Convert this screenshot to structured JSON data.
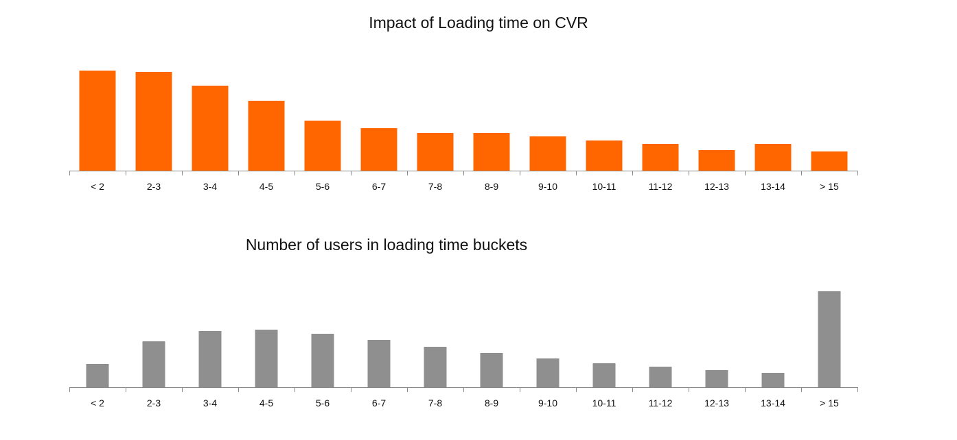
{
  "chart_data": [
    {
      "type": "bar",
      "title": "Impact of Loading time on CVR",
      "categories": [
        "< 2",
        "2-3",
        "3-4",
        "4-5",
        "5-6",
        "6-7",
        "7-8",
        "8-9",
        "9-10",
        "10-11",
        "11-12",
        "12-13",
        "13-14",
        "> 15"
      ],
      "values": [
        146,
        144,
        124,
        102,
        73,
        62,
        55,
        55,
        50,
        44,
        39,
        30,
        39,
        28
      ],
      "ylim": [
        0,
        150
      ],
      "y_axis_shown": false,
      "grid": false,
      "color": "#ff6600"
    },
    {
      "type": "bar",
      "title": "Number of users in loading time buckets",
      "categories": [
        "< 2",
        "2-3",
        "3-4",
        "4-5",
        "5-6",
        "6-7",
        "7-8",
        "8-9",
        "9-10",
        "10-11",
        "11-12",
        "12-13",
        "13-14",
        "> 15"
      ],
      "values": [
        34,
        67,
        82,
        84,
        78,
        69,
        59,
        50,
        42,
        35,
        30,
        25,
        21,
        140
      ],
      "ylim": [
        0,
        145
      ],
      "y_axis_shown": false,
      "grid": false,
      "color": "#8e8f8e"
    }
  ]
}
